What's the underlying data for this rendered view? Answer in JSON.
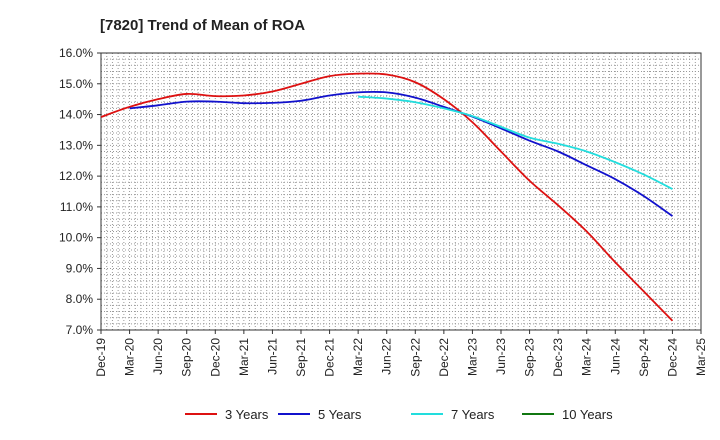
{
  "chart_data": {
    "type": "line",
    "title": "[7820]  Trend of Mean of ROA",
    "xlabel": "",
    "ylabel": "",
    "ylim": [
      7.0,
      16.0
    ],
    "y_ticks": [
      "7.0%",
      "8.0%",
      "9.0%",
      "10.0%",
      "11.0%",
      "12.0%",
      "13.0%",
      "14.0%",
      "15.0%",
      "16.0%"
    ],
    "y_tick_values": [
      7,
      8,
      9,
      10,
      11,
      12,
      13,
      14,
      15,
      16
    ],
    "categories": [
      "Dec-19",
      "Mar-20",
      "Jun-20",
      "Sep-20",
      "Dec-20",
      "Mar-21",
      "Jun-21",
      "Sep-21",
      "Dec-21",
      "Mar-22",
      "Jun-22",
      "Sep-22",
      "Dec-22",
      "Mar-23",
      "Jun-23",
      "Sep-23",
      "Dec-23",
      "Mar-24",
      "Jun-24",
      "Sep-24",
      "Dec-24",
      "Mar-25"
    ],
    "grid": true,
    "legend_position": "bottom",
    "series": [
      {
        "name": "3 Years",
        "color": "#dd1111",
        "values": [
          13.92,
          14.25,
          14.5,
          14.67,
          14.6,
          14.62,
          14.75,
          15.0,
          15.25,
          15.33,
          15.3,
          15.05,
          14.5,
          13.75,
          12.8,
          11.85,
          11.05,
          10.2,
          9.2,
          8.25,
          7.3,
          null
        ]
      },
      {
        "name": "5 Years",
        "color": "#1111cc",
        "values": [
          null,
          14.2,
          14.3,
          14.42,
          14.42,
          14.37,
          14.38,
          14.45,
          14.62,
          14.72,
          14.72,
          14.55,
          14.25,
          13.93,
          13.55,
          13.15,
          12.8,
          12.35,
          11.9,
          11.35,
          10.7,
          null
        ]
      },
      {
        "name": "7 Years",
        "color": "#22dddd",
        "values": [
          null,
          null,
          null,
          null,
          null,
          null,
          null,
          null,
          null,
          14.58,
          14.52,
          14.4,
          14.2,
          13.95,
          13.6,
          13.25,
          13.05,
          12.8,
          12.45,
          12.05,
          11.58,
          null
        ]
      },
      {
        "name": "10 Years",
        "color": "#117711",
        "values": [
          null,
          null,
          null,
          null,
          null,
          null,
          null,
          null,
          null,
          null,
          null,
          null,
          null,
          null,
          null,
          null,
          null,
          null,
          null,
          null,
          null,
          null
        ]
      }
    ]
  }
}
